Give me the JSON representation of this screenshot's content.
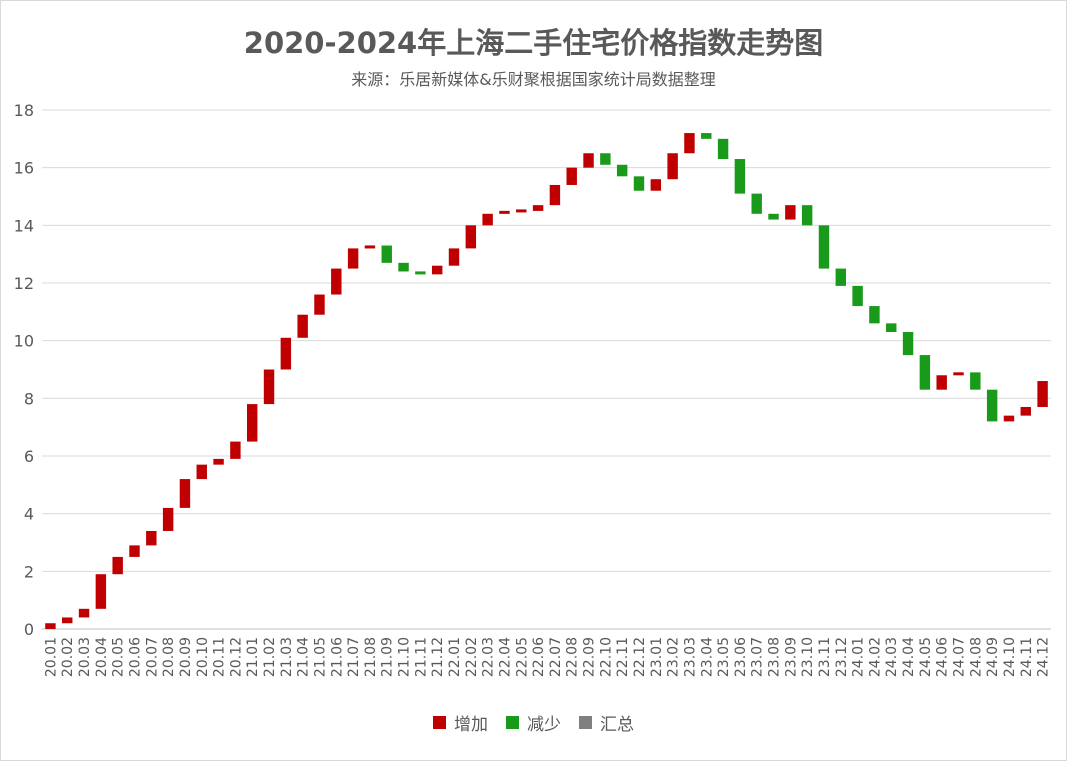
{
  "chart_data": {
    "type": "waterfall",
    "title": "2020-2024年上海二手住宅价格指数走势图",
    "subtitle": "来源：乐居新媒体&乐财聚根据国家统计局数据整理",
    "ylim": [
      0,
      18
    ],
    "yticks": [
      0,
      2,
      4,
      6,
      8,
      10,
      12,
      14,
      16,
      18
    ],
    "grid": true,
    "legend_position": "bottom",
    "colors": {
      "increase": "#c00000",
      "decrease": "#1a9a1a",
      "total": "#808080"
    },
    "legend": [
      {
        "label": "增加",
        "color": "#c00000"
      },
      {
        "label": "减少",
        "color": "#1a9a1a"
      },
      {
        "label": "汇总",
        "color": "#808080"
      }
    ],
    "categories": [
      "20.01",
      "20.02",
      "20.03",
      "20.04",
      "20.05",
      "20.06",
      "20.07",
      "20.08",
      "20.09",
      "20.10",
      "20.11",
      "20.12",
      "21.01",
      "21.02",
      "21.03",
      "21.04",
      "21.05",
      "21.06",
      "21.07",
      "21.08",
      "21.09",
      "21.10",
      "21.11",
      "21.12",
      "22.01",
      "22.02",
      "22.03",
      "22.04",
      "22.05",
      "22.06",
      "22.07",
      "22.08",
      "22.09",
      "22.10",
      "22.11",
      "22.12",
      "23.01",
      "23.02",
      "23.03",
      "23.04",
      "23.05",
      "23.06",
      "23.07",
      "23.08",
      "23.09",
      "23.10",
      "23.11",
      "23.12",
      "24.01",
      "24.02",
      "24.03",
      "24.04",
      "24.05",
      "24.06",
      "24.07",
      "24.08",
      "24.09",
      "24.10",
      "24.11",
      "24.12"
    ],
    "changes": [
      0.2,
      0.2,
      0.3,
      1.2,
      0.6,
      0.4,
      0.5,
      0.8,
      1.0,
      0.5,
      0.2,
      0.6,
      1.3,
      1.2,
      1.1,
      0.8,
      0.7,
      0.9,
      0.7,
      0.1,
      -0.6,
      -0.3,
      -0.1,
      0.3,
      0.6,
      0.8,
      0.4,
      0.1,
      0.0,
      0.2,
      0.7,
      0.6,
      0.5,
      -0.4,
      -0.4,
      -0.5,
      0.4,
      0.9,
      0.7,
      -0.2,
      -0.7,
      -1.2,
      -0.7,
      -0.2,
      0.5,
      -0.7,
      -1.5,
      -0.6,
      -0.7,
      -0.6,
      -0.3,
      -0.8,
      -1.2,
      0.5,
      0.1,
      -0.6,
      -1.1,
      0.2,
      0.3,
      0.9
    ]
  }
}
